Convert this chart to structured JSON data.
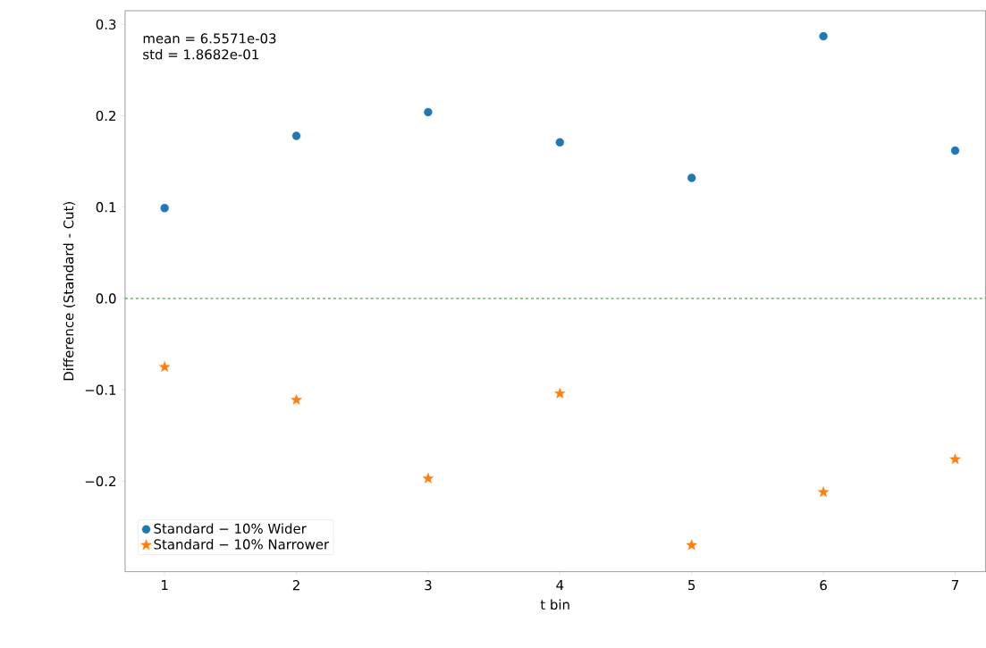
{
  "chart_data": {
    "type": "scatter",
    "xlabel": "t bin",
    "ylabel": "Difference (Standard - Cut)",
    "annotations": [
      "mean = 6.5571e-03",
      "std = 1.8682e-01"
    ],
    "x": [
      1,
      2,
      3,
      4,
      5,
      6,
      7
    ],
    "series": [
      {
        "name": "Standard − 10% Wider",
        "color": "#1f77b4",
        "marker": "circle",
        "values": [
          0.099,
          0.178,
          0.204,
          0.171,
          0.132,
          0.287,
          0.162
        ]
      },
      {
        "name": "Standard − 10% Narrower",
        "color": "#ff7f0e",
        "marker": "star",
        "values": [
          -0.075,
          -0.111,
          -0.197,
          -0.104,
          -0.27,
          -0.212,
          -0.176
        ]
      }
    ],
    "xlim": [
      0.7,
      7.23
    ],
    "ylim": [
      -0.299,
      0.315
    ],
    "xticks": [
      1,
      2,
      3,
      4,
      5,
      6,
      7
    ],
    "yticks": [
      {
        "value": -0.2,
        "label": "−0.2"
      },
      {
        "value": -0.1,
        "label": "−0.1"
      },
      {
        "value": 0.0,
        "label": "0.0"
      },
      0.1,
      0.2,
      0.3
    ],
    "ref_lines": [
      {
        "axis": "y",
        "value": 0,
        "color": "#008000",
        "line_style": "dashed"
      }
    ],
    "legend": "bottom left"
  }
}
